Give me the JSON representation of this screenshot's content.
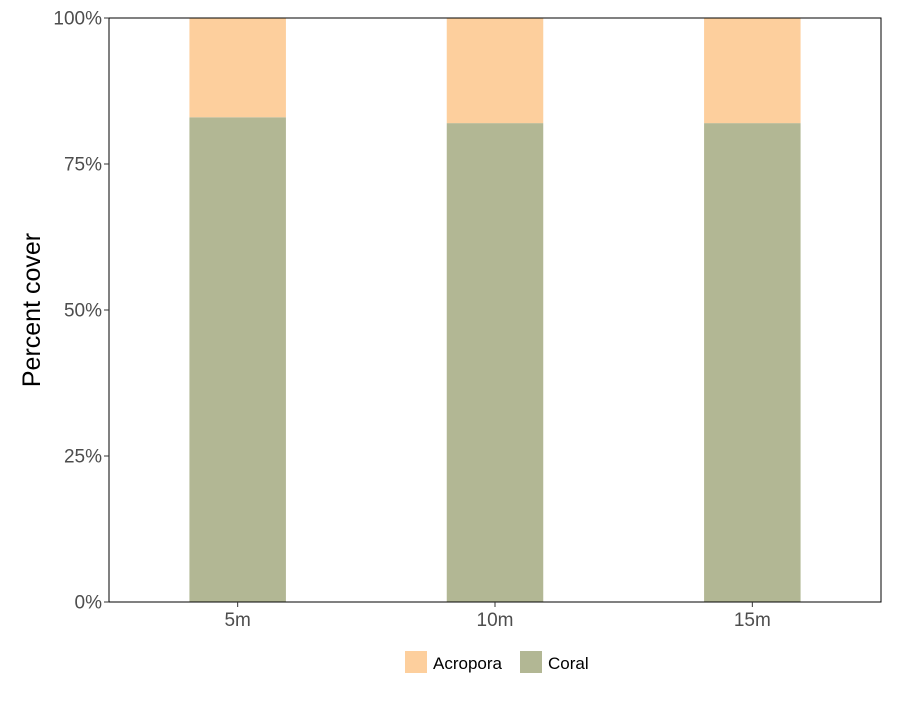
{
  "chart_data": {
    "type": "bar",
    "stacked": true,
    "categories": [
      "5m",
      "10m",
      "15m"
    ],
    "series": [
      {
        "name": "Coral",
        "color": "#b2b794",
        "values": [
          0.83,
          0.82,
          0.82
        ]
      },
      {
        "name": "Acropora",
        "color": "#fdcf9d",
        "values": [
          0.17,
          0.18,
          0.18
        ]
      }
    ],
    "ylabel": "Percent cover",
    "xlabel": "",
    "ylim": [
      0,
      1
    ],
    "yticks": [
      0,
      0.25,
      0.5,
      0.75,
      1
    ],
    "ytick_labels": [
      "0%",
      "25%",
      "50%",
      "75%",
      "100%"
    ],
    "grid": false,
    "legend": {
      "position": "bottom",
      "entries": [
        "Acropora",
        "Coral"
      ]
    }
  }
}
